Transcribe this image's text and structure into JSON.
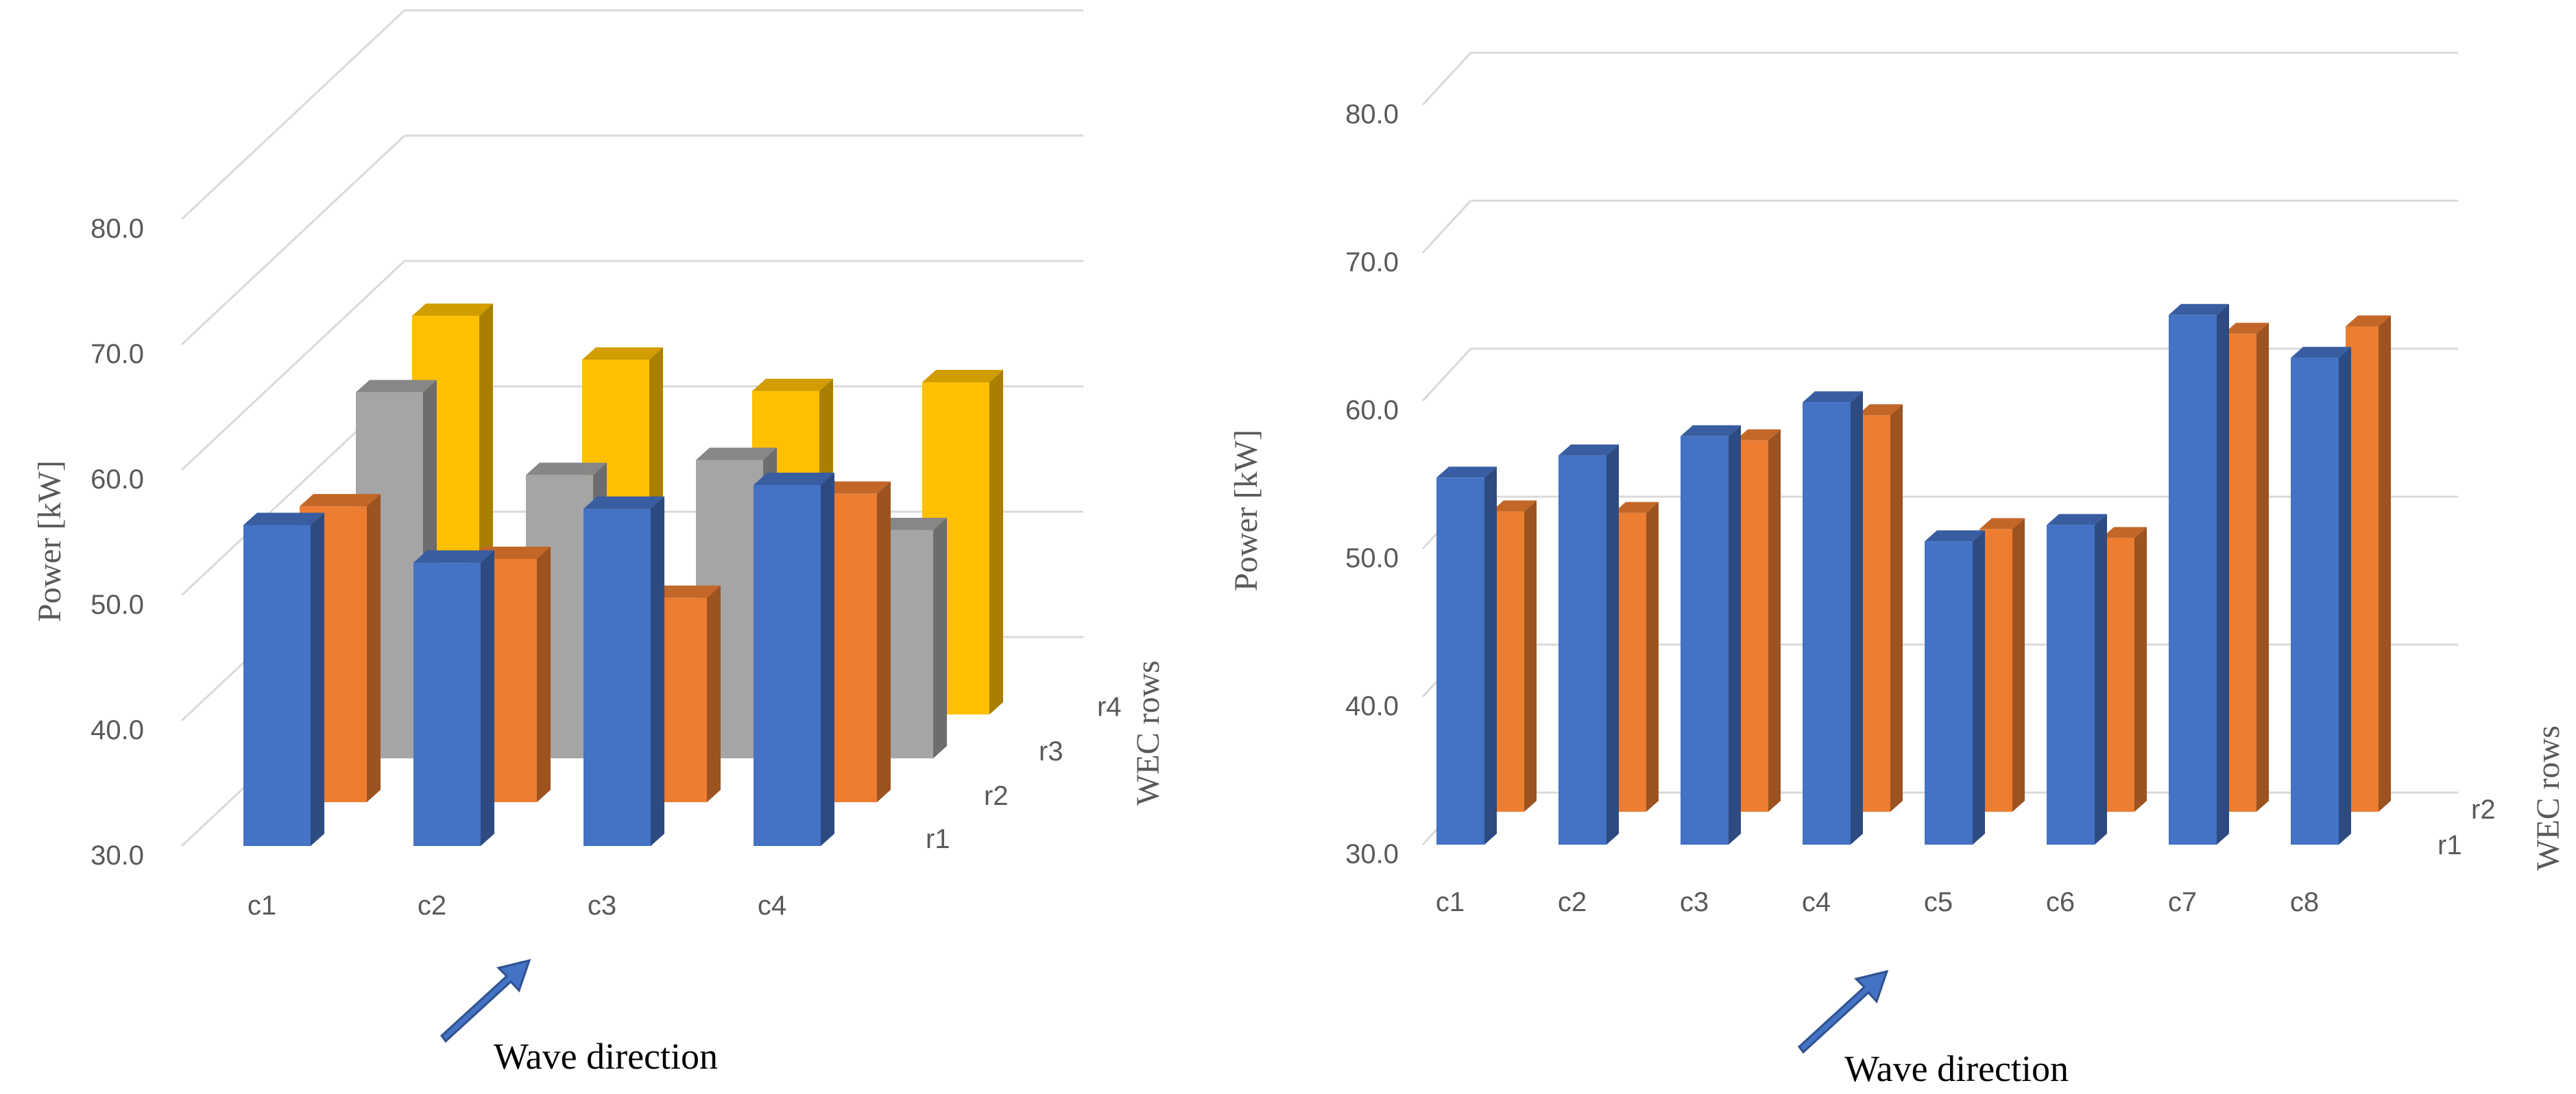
{
  "colors": {
    "r1": "#4472c4",
    "r2": "#ed7d31",
    "r3": "#a5a5a5",
    "r4": "#ffc000",
    "arrow": "#4472c4",
    "grid": "#d9d9d9"
  },
  "chart_data": [
    {
      "type": "bar3d",
      "ylabel": "Power [kW]",
      "zlabel": "WEC rows",
      "annotation": "Wave direction",
      "ylim": [
        30,
        80
      ],
      "y_ticks": [
        "30.0",
        "40.0",
        "50.0",
        "60.0",
        "70.0",
        "80.0"
      ],
      "categories": [
        "c1",
        "c2",
        "c3",
        "c4"
      ],
      "rows": [
        "r1",
        "r2",
        "r3",
        "r4"
      ],
      "series": [
        {
          "name": "r1",
          "values": [
            55.6,
            52.6,
            56.9,
            58.8
          ]
        },
        {
          "name": "r2",
          "values": [
            53.6,
            49.4,
            46.3,
            54.6
          ]
        },
        {
          "name": "r3",
          "values": [
            59.2,
            52.6,
            53.8,
            48.2
          ]
        },
        {
          "name": "r4",
          "values": [
            61.8,
            58.3,
            55.8,
            56.5
          ]
        }
      ]
    },
    {
      "type": "bar3d",
      "ylabel": "Power [kW]",
      "zlabel": "WEC rows",
      "annotation": "Wave direction",
      "ylim": [
        30,
        80
      ],
      "y_ticks": [
        "30.0",
        "40.0",
        "50.0",
        "60.0",
        "70.0",
        "80.0"
      ],
      "categories": [
        "c1",
        "c2",
        "c3",
        "c4",
        "c5",
        "c6",
        "c7",
        "c8"
      ],
      "rows": [
        "r1",
        "r2"
      ],
      "series": [
        {
          "name": "r1",
          "values": [
            54.8,
            56.3,
            57.6,
            59.9,
            50.5,
            51.6,
            65.8,
            62.9
          ]
        },
        {
          "name": "r2",
          "values": [
            50.3,
            50.2,
            55.1,
            56.8,
            49.1,
            48.5,
            62.3,
            62.8
          ]
        }
      ]
    }
  ]
}
